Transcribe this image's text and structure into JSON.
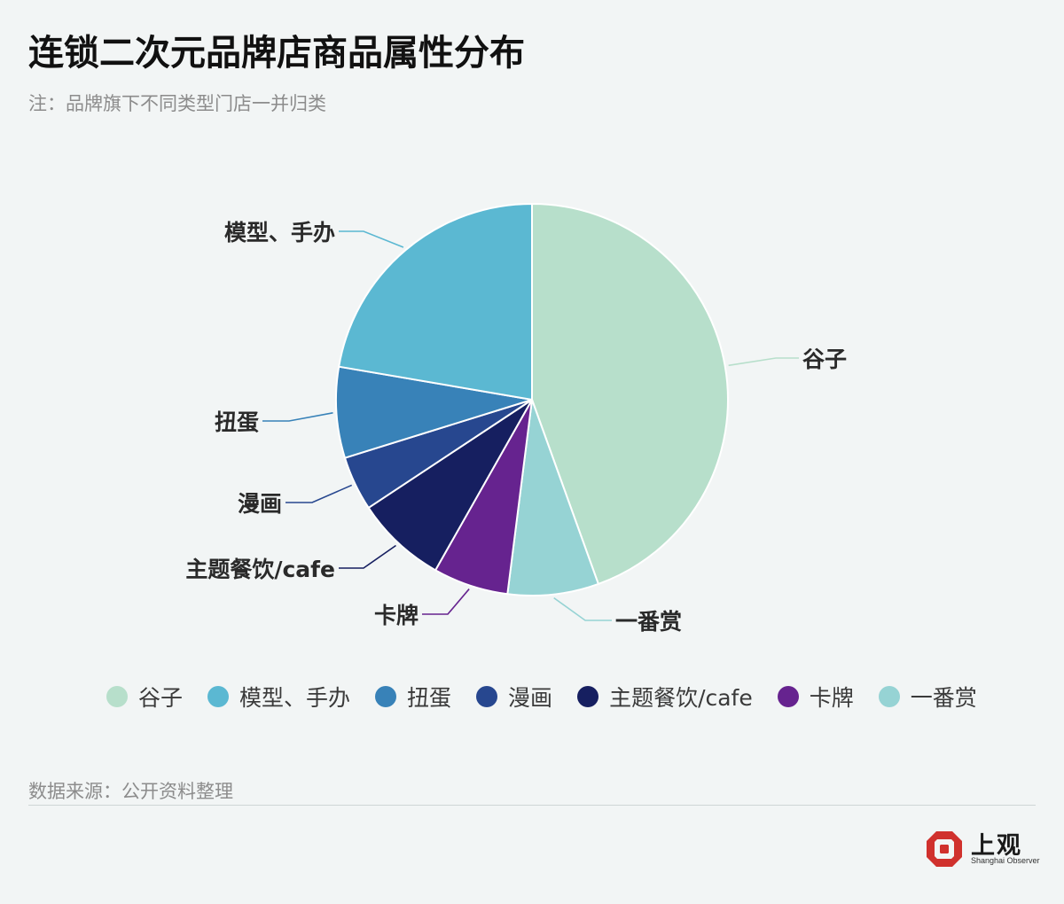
{
  "header": {
    "title": "连锁二次元品牌店商品属性分布",
    "subtitle": "注：品牌旗下不同类型门店一并归类"
  },
  "chart_data": {
    "type": "pie",
    "title": "连锁二次元品牌店商品属性分布",
    "slices": [
      {
        "label": "谷子",
        "value": 44.5,
        "color": "#b7dfcb"
      },
      {
        "label": "一番赏",
        "value": 7.5,
        "color": "#96d3d4"
      },
      {
        "label": "卡牌",
        "value": 6.2,
        "color": "#66238f"
      },
      {
        "label": "主题餐饮/cafe",
        "value": 7.5,
        "color": "#161f60"
      },
      {
        "label": "漫画",
        "value": 4.5,
        "color": "#27478f"
      },
      {
        "label": "扭蛋",
        "value": 7.5,
        "color": "#3882b8"
      },
      {
        "label": "模型、手办",
        "value": 22.3,
        "color": "#5bb8d2"
      }
    ],
    "legend_order": [
      "谷子",
      "模型、手办",
      "扭蛋",
      "漫画",
      "主题餐饮/cafe",
      "卡牌",
      "一番赏"
    ],
    "legend_position": "bottom"
  },
  "footer": {
    "source": "数据来源：公开资料整理",
    "logo_cn": "上观",
    "logo_en": "Shanghai Observer",
    "logo_color": "#d0312d"
  }
}
